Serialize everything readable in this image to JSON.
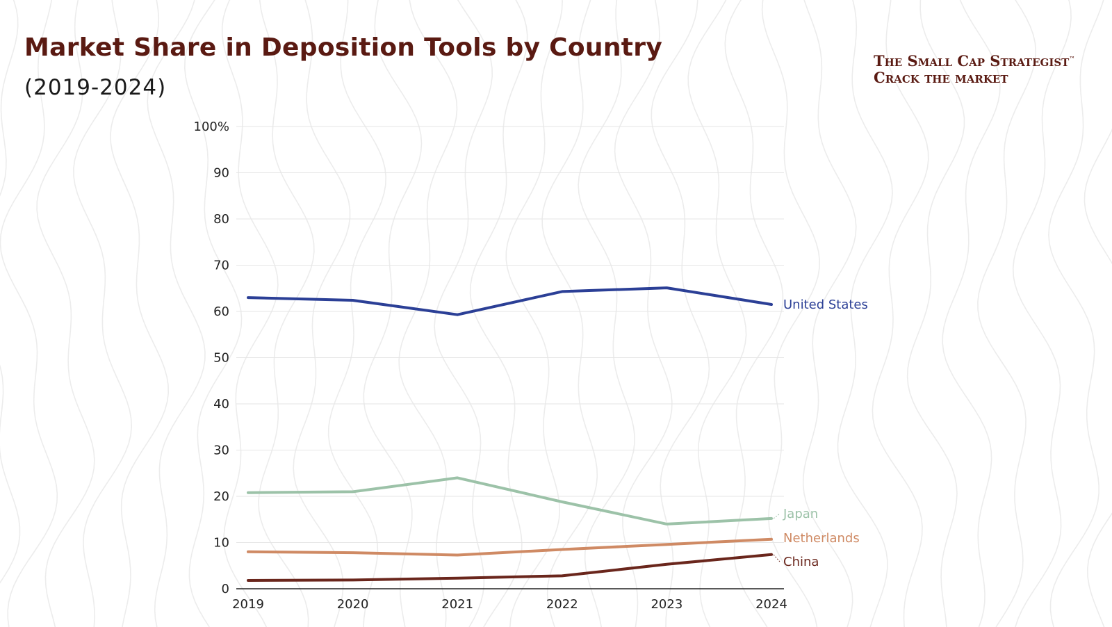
{
  "header": {
    "title": "Market Share in Deposition Tools by Country",
    "subtitle": "(2019-2024)"
  },
  "brand": {
    "name": "The Small Cap Strategist",
    "trademark": "™",
    "tagline": "Crack the market"
  },
  "colors": {
    "title": "#5a1a12",
    "grid": "#e6e6e6",
    "axis": "#222222"
  },
  "chart_data": {
    "type": "line",
    "title": "Market Share in Deposition Tools by Country",
    "subtitle": "(2019-2024)",
    "xlabel": "",
    "ylabel": "",
    "x": [
      "2019",
      "2020",
      "2021",
      "2022",
      "2023",
      "2024"
    ],
    "ylim": [
      0,
      100
    ],
    "yticks": [
      0,
      10,
      20,
      30,
      40,
      50,
      60,
      70,
      80,
      90,
      100
    ],
    "ytick_labels": [
      "0",
      "10",
      "20",
      "30",
      "40",
      "50",
      "60",
      "70",
      "80",
      "90",
      "100%"
    ],
    "grid": true,
    "legend": "direct labels at line ends (right)",
    "series": [
      {
        "name": "United States",
        "color": "#2b3f96",
        "values": [
          63.0,
          62.4,
          59.3,
          64.3,
          65.1,
          61.5
        ]
      },
      {
        "name": "Japan",
        "color": "#9cc2a8",
        "values": [
          20.8,
          21.0,
          24.0,
          18.8,
          14.0,
          15.2
        ]
      },
      {
        "name": "Netherlands",
        "color": "#cf8a64",
        "values": [
          8.0,
          7.8,
          7.3,
          8.5,
          9.6,
          10.7
        ]
      },
      {
        "name": "China",
        "color": "#6a261c",
        "values": [
          1.8,
          1.9,
          2.3,
          2.8,
          5.3,
          7.4
        ]
      }
    ]
  }
}
